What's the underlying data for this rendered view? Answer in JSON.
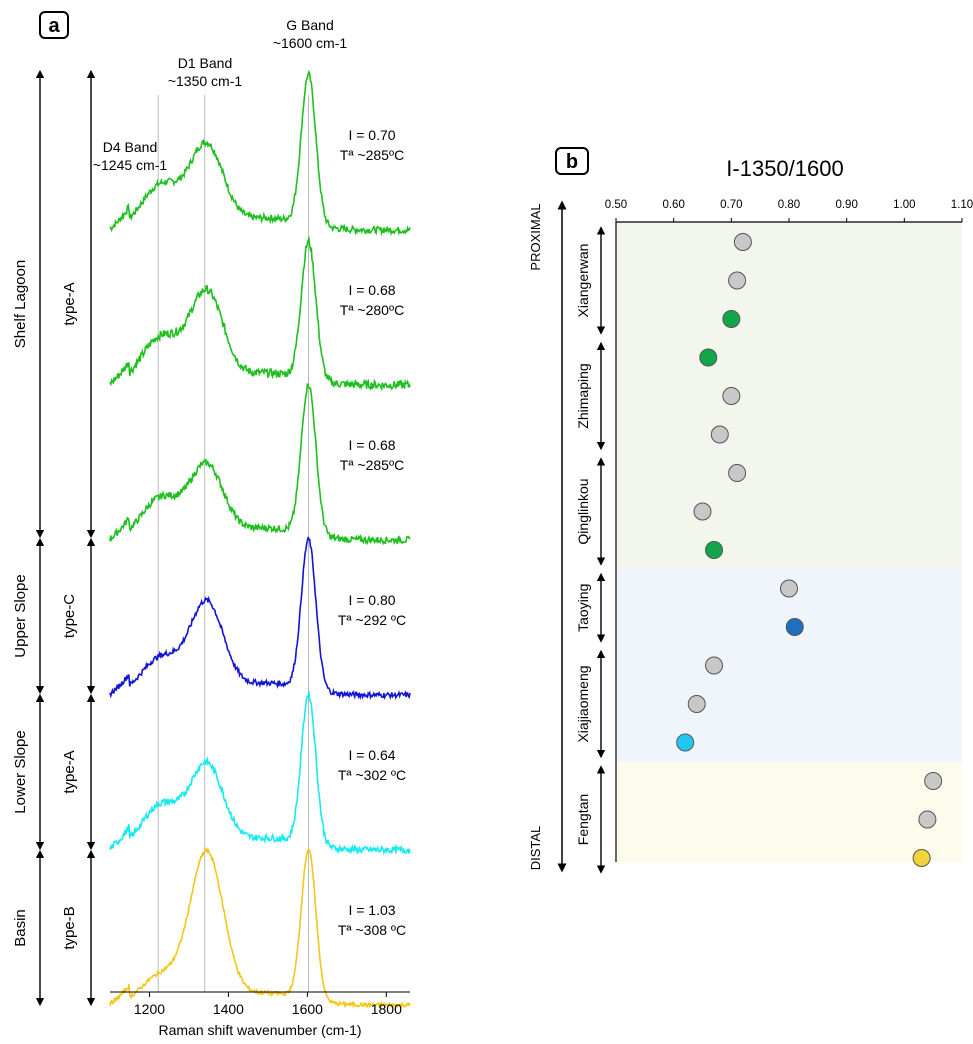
{
  "panel_a": {
    "label": "a",
    "xlabel": "Raman shift wavenumber (cm-1)",
    "x_ticks": [
      1200,
      1400,
      1600,
      1800
    ],
    "band_lines": [
      {
        "name": "D4 Band",
        "sub": "~1245 cm-1",
        "x": 1222
      },
      {
        "name": "D1 Band",
        "sub": "~1350 cm-1",
        "x": 1340
      },
      {
        "name": "G Band",
        "sub": "~1600 cm-1",
        "x": 1603
      }
    ],
    "facies": [
      {
        "label": "Shelf Lagoon",
        "span": [
          0,
          3
        ]
      },
      {
        "label": "Upper Slope",
        "span": [
          3,
          4
        ]
      },
      {
        "label": "Lower Slope",
        "span": [
          4,
          5
        ]
      },
      {
        "label": "Basin",
        "span": [
          5,
          6
        ]
      }
    ],
    "types": [
      {
        "label": "type-A",
        "span": [
          0,
          3
        ]
      },
      {
        "label": "type-C",
        "span": [
          3,
          4
        ]
      },
      {
        "label": "type-A",
        "span": [
          4,
          5
        ]
      },
      {
        "label": "type-B",
        "span": [
          5,
          6
        ]
      }
    ],
    "spectra": [
      {
        "I": "I = 0.70",
        "T": "Tª ~285ºC",
        "color": "#1fbf1f",
        "d1": 0.55,
        "g": 1.0,
        "d4": 0.3,
        "noise": 0.045
      },
      {
        "I": "I = 0.68",
        "T": "Tª ~280ºC",
        "color": "#1fbf1f",
        "d1": 0.6,
        "g": 0.92,
        "d4": 0.32,
        "noise": 0.055
      },
      {
        "I": "I  = 0.68",
        "T": "Tª ~285ºC",
        "color": "#1fbf1f",
        "d1": 0.48,
        "g": 1.0,
        "d4": 0.28,
        "noise": 0.045
      },
      {
        "I": "I = 0.80",
        "T": "Tª ~292 ºC",
        "color": "#1414d6",
        "d1": 0.6,
        "g": 1.0,
        "d4": 0.25,
        "noise": 0.035
      },
      {
        "I": "I = 0.64",
        "T": "Tª ~302 ºC",
        "color": "#18eaf0",
        "d1": 0.55,
        "g": 1.0,
        "d4": 0.3,
        "noise": 0.045
      },
      {
        "I": "I = 1.03",
        "T": "Tª ~308 ºC",
        "color": "#f5c518",
        "d1": 1.0,
        "g": 1.0,
        "d4": 0.2,
        "noise": 0.025
      }
    ]
  },
  "chart_data": {
    "type": "scatter",
    "title": "I-1350/1600",
    "x_ticks": [
      "0.50",
      "0.60",
      "0.70",
      "0.80",
      "0.90",
      "1.00",
      "1.10"
    ],
    "xlim": [
      0.5,
      1.1
    ],
    "axis_left_label": "PROXIMAL",
    "axis_right_label": "DISTAL",
    "groups": [
      {
        "label": "Xiangerwan",
        "bg": "#f3f6ec",
        "points": [
          {
            "x": 0.72,
            "color": "#c8c8c8"
          },
          {
            "x": 0.71,
            "color": "#c8c8c8"
          },
          {
            "x": 0.7,
            "color": "#12a64a"
          }
        ]
      },
      {
        "label": "Zhimaping",
        "bg": "#f3f6ec",
        "points": [
          {
            "x": 0.66,
            "color": "#12a64a"
          },
          {
            "x": 0.7,
            "color": "#c8c8c8"
          },
          {
            "x": 0.68,
            "color": "#c8c8c8"
          }
        ]
      },
      {
        "label": "Qinglinkou",
        "bg": "#f3f6ec",
        "points": [
          {
            "x": 0.71,
            "color": "#c8c8c8"
          },
          {
            "x": 0.65,
            "color": "#c8c8c8"
          },
          {
            "x": 0.67,
            "color": "#12a64a"
          }
        ]
      },
      {
        "label": "Taoying",
        "bg": "#eff5fb",
        "points": [
          {
            "x": 0.8,
            "color": "#c8c8c8"
          },
          {
            "x": 0.81,
            "color": "#1f6fbf"
          }
        ]
      },
      {
        "label": "Xiajiaomeng",
        "bg": "#eff5fb",
        "points": [
          {
            "x": 0.67,
            "color": "#c8c8c8"
          },
          {
            "x": 0.64,
            "color": "#c8c8c8"
          },
          {
            "x": 0.62,
            "color": "#1ec8f0"
          }
        ]
      },
      {
        "label": "Fengtan",
        "bg": "#fcfbec",
        "points": [
          {
            "x": 1.05,
            "color": "#c8c8c8"
          },
          {
            "x": 1.04,
            "color": "#c8c8c8"
          },
          {
            "x": 1.03,
            "color": "#f0d43a"
          }
        ]
      }
    ]
  },
  "panel_b": {
    "label": "b"
  }
}
